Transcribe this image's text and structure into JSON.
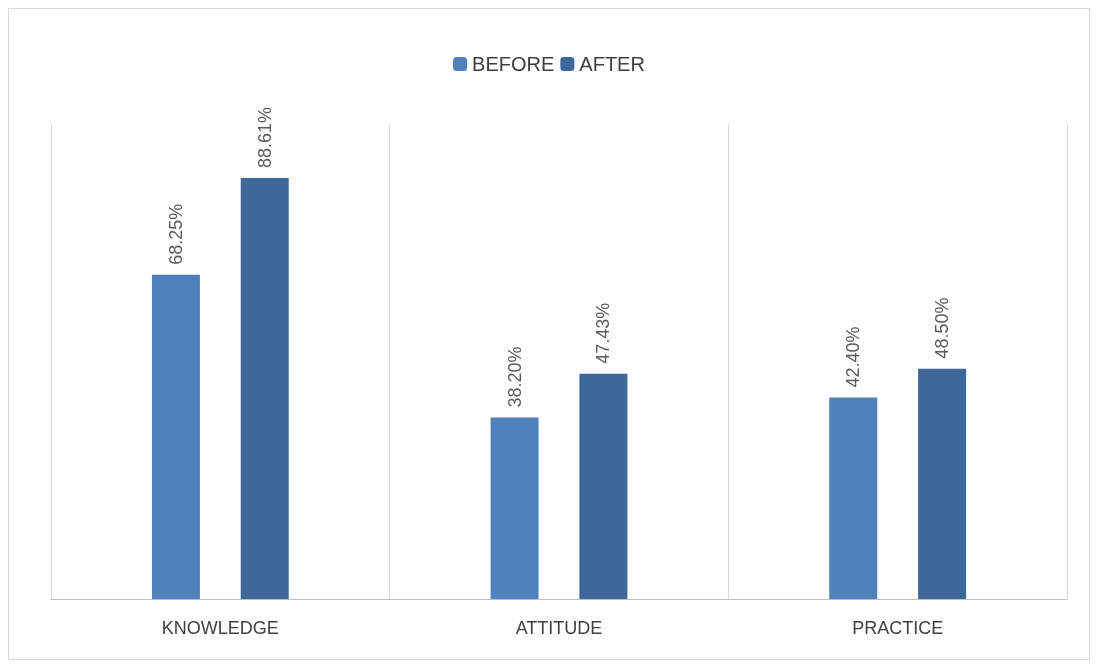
{
  "chart_data": {
    "type": "bar",
    "categories": [
      "KNOWLEDGE",
      "ATTITUDE",
      "PRACTICE"
    ],
    "series": [
      {
        "name": "BEFORE",
        "color": "#4f81bd",
        "values": [
          68.25,
          38.2,
          42.4
        ],
        "value_labels": [
          "68.25%",
          "38.20%",
          "42.40%"
        ]
      },
      {
        "name": "AFTER",
        "color": "#3e6899",
        "values": [
          88.61,
          47.43,
          48.5
        ],
        "value_labels": [
          "88.61%",
          "47.43%",
          "48.50%"
        ]
      }
    ],
    "grid": "x",
    "legend": "top"
  }
}
